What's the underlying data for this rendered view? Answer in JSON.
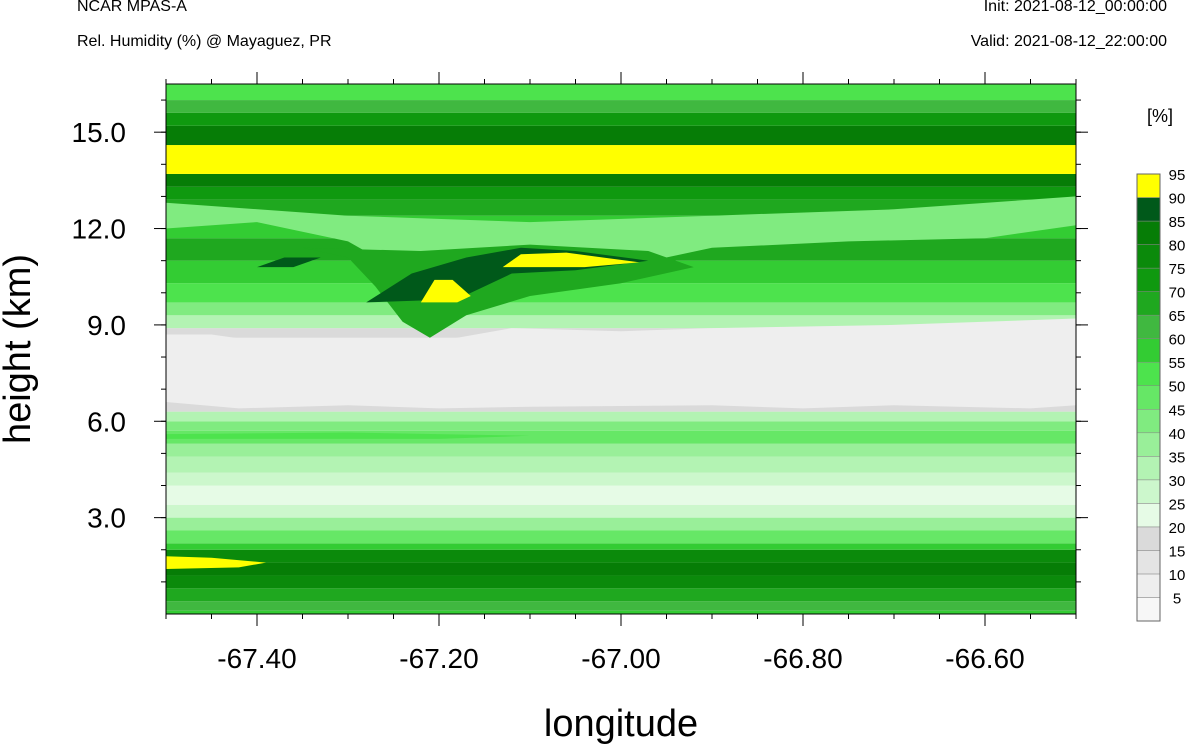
{
  "header": {
    "model": "NCAR MPAS-A",
    "field": "Rel. Humidity (%) @ Mayaguez, PR",
    "init": "Init: 2021-08-12_00:00:00",
    "valid": "Valid: 2021-08-12_22:00:00"
  },
  "chart_data": {
    "type": "heatmap",
    "xlabel": "longitude",
    "ylabel": "height (km)",
    "xlim": [
      -67.5,
      -66.5
    ],
    "ylim": [
      0,
      16.5
    ],
    "x_ticks": [
      -67.4,
      -67.2,
      -67.0,
      -66.8,
      -66.6
    ],
    "x_tick_labels": [
      "-67.40",
      "-67.20",
      "-67.00",
      "-66.80",
      "-66.60"
    ],
    "y_ticks": [
      3,
      6,
      9,
      12,
      15
    ],
    "y_tick_labels": [
      "3.0",
      "6.0",
      "9.0",
      "12.0",
      "15.0"
    ],
    "colorbar": {
      "unit": "[%]",
      "levels": [
        5,
        10,
        15,
        20,
        25,
        30,
        35,
        40,
        45,
        50,
        55,
        60,
        65,
        70,
        75,
        80,
        85,
        90,
        95
      ],
      "level_labels": [
        "5",
        "10",
        "15",
        "20",
        "25",
        "30",
        "35",
        "40",
        "45",
        "50",
        "55",
        "60",
        "65",
        "70",
        "75",
        "80",
        "85",
        "90",
        "95"
      ],
      "colors": [
        "#f7f7f7",
        "#eeeeee",
        "#e4e4e4",
        "#dadada",
        "#e6fbe6",
        "#ccf7cc",
        "#b3f3b3",
        "#99ef99",
        "#80eb80",
        "#66e766",
        "#4de34d",
        "#33cc33",
        "#40b840",
        "#1fa81f",
        "#0f990f",
        "#0b8a0b",
        "#067d06",
        "#00591a",
        "#ffff00"
      ]
    },
    "bands": [
      {
        "y0": 0,
        "y1": 0.1,
        "rh": 60
      },
      {
        "y0": 0.1,
        "y1": 0.4,
        "rh": 65
      },
      {
        "y0": 0.4,
        "y1": 0.8,
        "rh": 70
      },
      {
        "y0": 0.8,
        "y1": 1.2,
        "rh": 80
      },
      {
        "y0": 1.2,
        "y1": 1.6,
        "rh": 85
      },
      {
        "y0": 1.6,
        "y1": 2.0,
        "rh": 80
      },
      {
        "y0": 2.0,
        "y1": 2.2,
        "rh": 60
      },
      {
        "y0": 2.2,
        "y1": 2.6,
        "rh": 50
      },
      {
        "y0": 2.6,
        "y1": 3.0,
        "rh": 40
      },
      {
        "y0": 3.0,
        "y1": 3.4,
        "rh": 30
      },
      {
        "y0": 3.4,
        "y1": 4.0,
        "rh": 25
      },
      {
        "y0": 4.0,
        "y1": 4.4,
        "rh": 30
      },
      {
        "y0": 4.4,
        "y1": 4.9,
        "rh": 35
      },
      {
        "y0": 4.9,
        "y1": 5.3,
        "rh": 40
      },
      {
        "y0": 5.3,
        "y1": 5.7,
        "rh": 50
      },
      {
        "y0": 5.7,
        "y1": 6.0,
        "rh": 45
      },
      {
        "y0": 6.0,
        "y1": 6.3,
        "rh": 35
      },
      {
        "y0": 6.3,
        "y1": 6.6,
        "rh": 20
      },
      {
        "y0": 6.6,
        "y1": 8.0,
        "rh": 10
      },
      {
        "y0": 8.0,
        "y1": 8.6,
        "rh": 10
      },
      {
        "y0": 8.6,
        "y1": 8.9,
        "rh": 20
      },
      {
        "y0": 8.9,
        "y1": 9.3,
        "rh": 35
      },
      {
        "y0": 9.3,
        "y1": 9.7,
        "rh": 45
      },
      {
        "y0": 9.7,
        "y1": 10.3,
        "rh": 55
      },
      {
        "y0": 10.3,
        "y1": 11.0,
        "rh": 60
      },
      {
        "y0": 11.0,
        "y1": 11.7,
        "rh": 70
      },
      {
        "y0": 11.7,
        "y1": 12.4,
        "rh": 60
      },
      {
        "y0": 12.4,
        "y1": 12.9,
        "rh": 70
      },
      {
        "y0": 12.9,
        "y1": 13.3,
        "rh": 75
      },
      {
        "y0": 13.3,
        "y1": 13.7,
        "rh": 85
      },
      {
        "y0": 13.7,
        "y1": 14.6,
        "rh": 95
      },
      {
        "y0": 14.6,
        "y1": 15.2,
        "rh": 85
      },
      {
        "y0": 15.2,
        "y1": 15.6,
        "rh": 75
      },
      {
        "y0": 15.6,
        "y1": 16.0,
        "rh": 65
      },
      {
        "y0": 16.0,
        "y1": 16.5,
        "rh": 55
      }
    ],
    "features": [
      {
        "rh": 10,
        "points": [
          [
            -67.5,
            6.6
          ],
          [
            -67.42,
            6.4
          ],
          [
            -67.3,
            6.5
          ],
          [
            -67.2,
            6.4
          ],
          [
            -67.1,
            6.45
          ],
          [
            -66.9,
            6.5
          ],
          [
            -66.8,
            6.4
          ],
          [
            -66.7,
            6.5
          ],
          [
            -66.55,
            6.4
          ],
          [
            -66.5,
            6.5
          ],
          [
            -66.5,
            9.2
          ],
          [
            -66.7,
            9.0
          ],
          [
            -66.9,
            8.9
          ],
          [
            -67.0,
            8.8
          ],
          [
            -67.12,
            8.9
          ],
          [
            -67.2,
            8.5
          ],
          [
            -67.25,
            8.1
          ],
          [
            -67.35,
            8.3
          ],
          [
            -67.45,
            8.7
          ],
          [
            -67.5,
            8.7
          ]
        ]
      },
      {
        "rh": 45,
        "points": [
          [
            -67.5,
            12.0
          ],
          [
            -67.4,
            12.2
          ],
          [
            -67.3,
            11.6
          ],
          [
            -67.25,
            10.8
          ],
          [
            -67.22,
            10.2
          ],
          [
            -67.18,
            9.9
          ],
          [
            -67.1,
            10.3
          ],
          [
            -67.0,
            10.8
          ],
          [
            -66.9,
            11.4
          ],
          [
            -66.75,
            11.6
          ],
          [
            -66.6,
            11.7
          ],
          [
            -66.5,
            12.1
          ],
          [
            -66.5,
            13.0
          ],
          [
            -66.7,
            12.6
          ],
          [
            -66.9,
            12.4
          ],
          [
            -67.1,
            12.2
          ],
          [
            -67.3,
            12.4
          ],
          [
            -67.5,
            12.8
          ]
        ]
      },
      {
        "rh": 70,
        "points": [
          [
            -67.35,
            11.4
          ],
          [
            -67.3,
            11.1
          ],
          [
            -67.27,
            10.2
          ],
          [
            -67.24,
            9.1
          ],
          [
            -67.21,
            8.6
          ],
          [
            -67.17,
            9.3
          ],
          [
            -67.1,
            9.9
          ],
          [
            -67.0,
            10.3
          ],
          [
            -66.92,
            10.8
          ],
          [
            -66.97,
            11.3
          ],
          [
            -67.1,
            11.5
          ],
          [
            -67.22,
            11.3
          ]
        ]
      },
      {
        "rh": 90,
        "points": [
          [
            -67.28,
            9.7
          ],
          [
            -67.23,
            10.6
          ],
          [
            -67.17,
            11.1
          ],
          [
            -67.11,
            11.4
          ],
          [
            -67.05,
            11.3
          ],
          [
            -66.97,
            11.0
          ],
          [
            -67.05,
            10.7
          ],
          [
            -67.12,
            10.6
          ],
          [
            -67.18,
            9.8
          ]
        ]
      },
      {
        "rh": 90,
        "points": [
          [
            -67.4,
            10.8
          ],
          [
            -67.37,
            11.1
          ],
          [
            -67.33,
            11.1
          ],
          [
            -67.36,
            10.8
          ]
        ]
      },
      {
        "rh": 95,
        "points": [
          [
            -67.22,
            9.7
          ],
          [
            -67.205,
            10.4
          ],
          [
            -67.185,
            10.4
          ],
          [
            -67.165,
            9.9
          ],
          [
            -67.18,
            9.7
          ]
        ]
      },
      {
        "rh": 95,
        "points": [
          [
            -67.13,
            10.8
          ],
          [
            -67.11,
            11.2
          ],
          [
            -67.06,
            11.25
          ],
          [
            -67.02,
            11.1
          ],
          [
            -66.98,
            10.95
          ],
          [
            -67.04,
            10.8
          ]
        ]
      },
      {
        "rh": 95,
        "points": [
          [
            -67.5,
            1.4
          ],
          [
            -67.42,
            1.45
          ],
          [
            -67.39,
            1.6
          ],
          [
            -67.45,
            1.75
          ],
          [
            -67.5,
            1.8
          ]
        ]
      },
      {
        "rh": 55,
        "points": [
          [
            -67.5,
            5.45
          ],
          [
            -67.2,
            5.45
          ],
          [
            -67.1,
            5.55
          ],
          [
            -67.3,
            5.65
          ],
          [
            -67.5,
            5.6
          ]
        ]
      }
    ]
  }
}
